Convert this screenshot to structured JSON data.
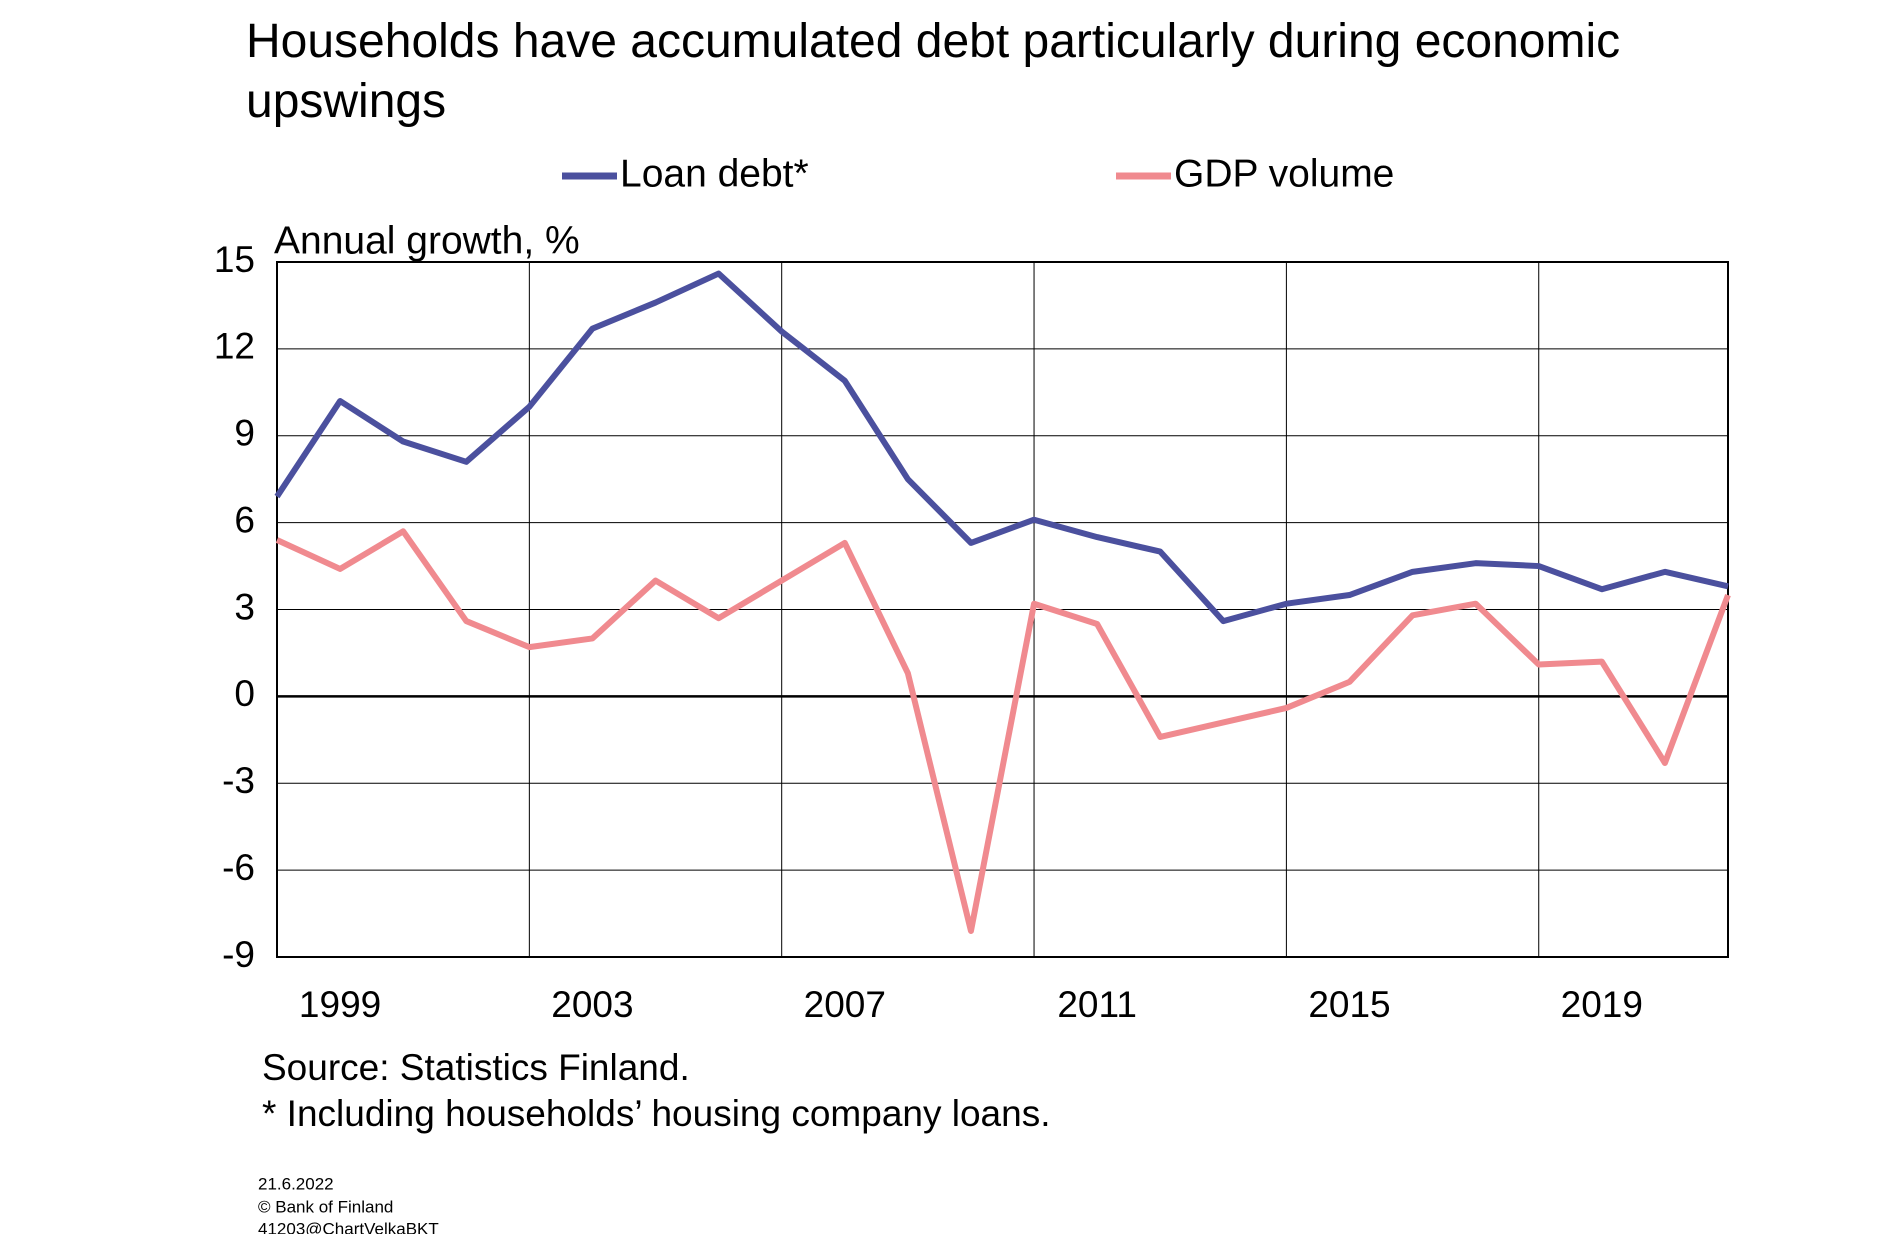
{
  "chart_data": {
    "type": "line",
    "title": "Households have accumulated debt particularly during economic upswings",
    "y_axis_label": "Annual growth, %",
    "categories": [
      null,
      "1999",
      null,
      null,
      null,
      "2003",
      null,
      null,
      null,
      "2007",
      null,
      null,
      null,
      "2011",
      null,
      null,
      null,
      "2015",
      null,
      null,
      null,
      "2019",
      null,
      null
    ],
    "series": [
      {
        "name": "Loan debt*",
        "color": "#4b509e",
        "values": [
          6.9,
          10.2,
          8.8,
          8.1,
          10.0,
          12.7,
          13.6,
          14.6,
          12.6,
          10.9,
          7.5,
          5.3,
          6.1,
          5.5,
          5.0,
          2.6,
          3.2,
          3.5,
          4.3,
          4.6,
          4.5,
          3.7,
          4.3,
          3.8
        ]
      },
      {
        "name": "GDP volume",
        "color": "#f08a8f",
        "values": [
          5.4,
          4.4,
          5.7,
          2.6,
          1.7,
          2.0,
          4.0,
          2.7,
          4.0,
          5.3,
          0.8,
          -8.1,
          3.2,
          2.5,
          -1.4,
          -0.9,
          -0.4,
          0.5,
          2.8,
          3.2,
          1.1,
          1.2,
          -2.3,
          3.5
        ]
      }
    ],
    "ylim": [
      -9,
      15
    ],
    "yticks": [
      -9,
      -6,
      -3,
      0,
      3,
      6,
      9,
      12,
      15
    ],
    "grid": true,
    "notes": [
      "Source: Statistics Finland.",
      "* Including households’ housing company loans."
    ],
    "footer": [
      "21.6.2022",
      "© Bank of Finland",
      "41203@ChartVelkaBKT"
    ]
  }
}
